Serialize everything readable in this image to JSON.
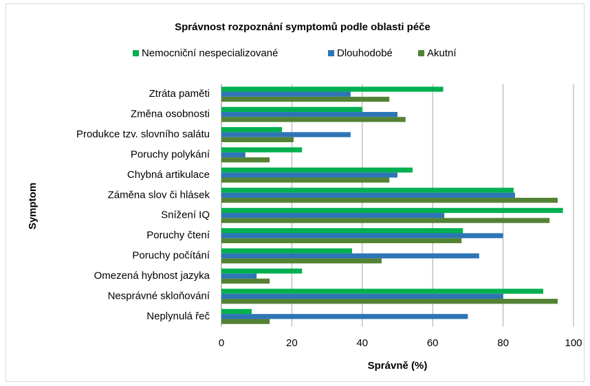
{
  "chart_data": {
    "type": "barh",
    "title": "Správnost rozpoznání symptomů podle oblasti péče",
    "xlabel": "Správně (%)",
    "ylabel": "Symptom",
    "categories": [
      "Ztráta paměti",
      "Změna osobnosti",
      "Produkce tzv. slovního salátu",
      "Poruchy polykání",
      "Chybná artikulace",
      "Záměna slov či hlásek",
      "Snížení IQ",
      "Poruchy čtení",
      "Poruchy počítání",
      "Omezená hybnost jazyka",
      "Nesprávné skloňování",
      "Neplynulá řeč"
    ],
    "series": [
      {
        "name": "Nemocniční nespecializované",
        "color": "#00b050",
        "values": [
          63,
          40,
          17.2,
          22.9,
          54.3,
          83,
          97,
          68.6,
          37.1,
          22.9,
          91.4,
          8.6
        ]
      },
      {
        "name": "Dlouhodobé",
        "color": "#2e75b6",
        "values": [
          36.7,
          50,
          36.7,
          6.8,
          50,
          83.4,
          63.3,
          80,
          73.2,
          10,
          80,
          70
        ]
      },
      {
        "name": "Akutní",
        "color": "#548235",
        "values": [
          47.7,
          52.3,
          20.5,
          13.7,
          47.7,
          95.5,
          93.2,
          68.2,
          45.5,
          13.7,
          95.5,
          13.7
        ]
      }
    ],
    "xlim": [
      0,
      100
    ],
    "xticks": [
      0,
      20,
      40,
      60,
      80,
      100
    ],
    "grid": true,
    "legend": "top"
  }
}
